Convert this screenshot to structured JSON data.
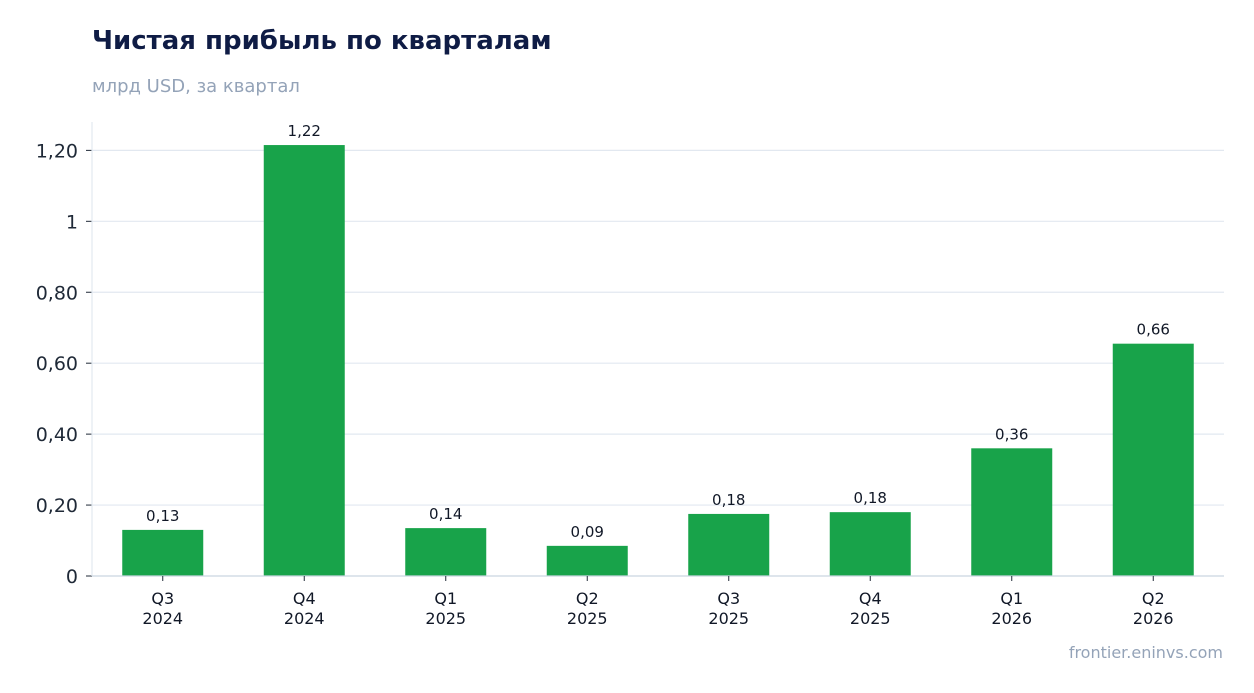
{
  "chart_data": {
    "type": "bar",
    "title": "Чистая прибыль по кварталам",
    "subtitle": "млрд USD, за квартал",
    "categories": [
      [
        "Q3",
        "2024"
      ],
      [
        "Q4",
        "2024"
      ],
      [
        "Q1",
        "2025"
      ],
      [
        "Q2",
        "2025"
      ],
      [
        "Q3",
        "2025"
      ],
      [
        "Q4",
        "2025"
      ],
      [
        "Q1",
        "2026"
      ],
      [
        "Q2",
        "2026"
      ]
    ],
    "values": [
      0.13,
      1.215,
      0.135,
      0.085,
      0.175,
      0.18,
      0.36,
      0.655
    ],
    "value_labels": [
      "0,13",
      "1,22",
      "0,14",
      "0,09",
      "0,18",
      "0,18",
      "0,36",
      "0,66"
    ],
    "yticks": [
      0,
      0.2,
      0.4,
      0.6,
      0.8,
      1,
      1.2
    ],
    "ytick_labels": [
      "0",
      "0,20",
      "0,40",
      "0,60",
      "0,80",
      "1",
      "1,20"
    ],
    "ylim": [
      0,
      1.28
    ],
    "grid": true,
    "legend": "none",
    "bar_color": "#18a34a",
    "grid_color": "#e2e8f0"
  },
  "source": "frontier.eninvs.com"
}
